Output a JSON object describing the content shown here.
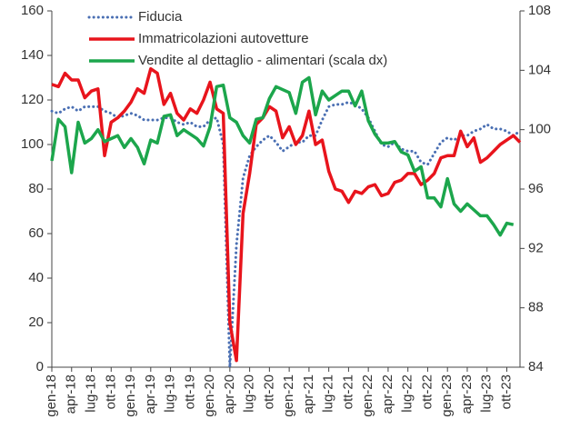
{
  "chart_data": {
    "type": "line",
    "categories": [
      "gen-18",
      null,
      null,
      "apr-18",
      null,
      null,
      "lug-18",
      null,
      null,
      "ott-18",
      null,
      null,
      "gen-19",
      null,
      null,
      "apr-19",
      null,
      null,
      "lug-19",
      null,
      null,
      "ott-19",
      null,
      null,
      "gen-20",
      null,
      null,
      "apr-20",
      null,
      null,
      "lug-20",
      null,
      null,
      "ott-20",
      null,
      null,
      "gen-21",
      null,
      null,
      "apr-21",
      null,
      null,
      "lug-21",
      null,
      null,
      "ott-21",
      null,
      null,
      "gen-22",
      null,
      null,
      "apr-22",
      null,
      null,
      "lug-22",
      null,
      null,
      "ott-22",
      null,
      null,
      "gen-23",
      null,
      null,
      "apr-23",
      null,
      null,
      "lug-23",
      null,
      null,
      "ott-23",
      null,
      null
    ],
    "series": [
      {
        "name": "Fiducia",
        "color": "#4a6fb3",
        "dash": "dotted",
        "values": [
          115,
          114,
          116,
          117,
          115,
          117,
          117,
          117,
          115,
          114,
          112,
          113,
          114,
          113,
          111,
          111,
          111,
          112,
          112,
          110,
          109,
          110,
          108,
          108,
          111,
          112,
          100,
          0,
          55,
          85,
          95,
          99,
          102,
          104,
          101,
          97,
          99,
          101,
          101,
          104,
          104,
          111,
          117,
          118,
          118,
          119,
          118,
          116,
          112,
          106,
          100,
          99,
          101,
          98,
          97,
          97,
          92,
          91,
          96,
          101,
          103,
          102,
          104,
          104,
          106,
          107,
          109,
          107,
          107,
          106,
          104,
          106
        ]
      },
      {
        "name": "Immatricolazioni autovetture",
        "color": "#e8141c",
        "values": [
          127,
          126,
          132,
          129,
          129,
          121,
          124,
          125,
          95,
          110,
          112,
          115,
          119,
          125,
          123,
          134,
          132,
          118,
          123,
          114,
          111,
          116,
          114,
          120,
          128,
          116,
          114,
          20,
          3,
          69,
          87,
          109,
          112,
          117,
          115,
          103,
          108,
          100,
          104,
          115,
          100,
          102,
          88,
          80,
          79,
          74,
          79,
          78,
          81,
          82,
          77,
          78,
          83,
          84,
          87,
          87,
          82,
          84,
          87,
          94,
          95,
          95,
          106,
          99,
          103,
          92,
          94,
          97,
          100,
          102,
          104,
          101
        ]
      },
      {
        "name": "Vendite al dettaglio - alimentari (scala dx)",
        "color": "#1ca64c",
        "axis": "y2",
        "values": [
          97.9,
          100.7,
          100.2,
          97.1,
          100.5,
          99.1,
          99.4,
          100.0,
          99.2,
          99.4,
          99.6,
          98.8,
          99.4,
          98.8,
          97.7,
          99.3,
          99.1,
          100.9,
          101.0,
          99.6,
          100.0,
          99.7,
          99.4,
          98.9,
          100.2,
          102.9,
          103.0,
          100.8,
          100.5,
          99.6,
          99.1,
          100.7,
          100.8,
          102.1,
          102.9,
          102.7,
          102.5,
          101.1,
          103.2,
          103.5,
          101.0,
          102.6,
          102.0,
          102.3,
          102.6,
          102.6,
          101.6,
          102.6,
          100.6,
          99.7,
          99.1,
          99.1,
          99.2,
          98.5,
          98.3,
          97.2,
          97.5,
          95.4,
          95.4,
          94.8,
          96.7,
          95.0,
          94.5,
          95.0,
          94.6,
          94.2,
          94.2,
          93.6,
          92.9,
          93.7,
          93.6,
          null
        ]
      }
    ],
    "ylim": [
      0,
      160
    ],
    "yticks": [
      0,
      20,
      40,
      60,
      80,
      100,
      120,
      140,
      160
    ],
    "y2lim": [
      84,
      108
    ],
    "y2ticks": [
      84,
      88,
      92,
      96,
      100,
      104,
      108
    ],
    "legend": "top-left"
  }
}
